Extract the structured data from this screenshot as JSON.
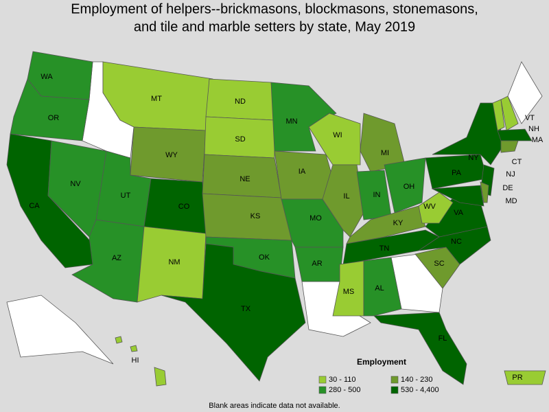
{
  "header": {
    "title": [
      "Employment of helpers--brickmasons, blockmasons, stonemasons,",
      "and tile and marble setters by state, May 2019"
    ]
  },
  "legend": {
    "title": "Employment",
    "classes": [
      {
        "label": "30 - 110",
        "color": "#99cc33"
      },
      {
        "label": "140 - 230",
        "color": "#6f9a2d"
      },
      {
        "label": "280 - 500",
        "color": "#279127"
      },
      {
        "label": "530 - 4,400",
        "color": "#006400"
      }
    ]
  },
  "states": [
    {
      "label": "WA",
      "class": 2
    },
    {
      "label": "OR",
      "class": 2
    },
    {
      "label": "CA",
      "class": 3
    },
    {
      "label": "NV",
      "class": 2
    },
    {
      "label": "MT",
      "class": 0
    },
    {
      "label": "WY",
      "class": 1
    },
    {
      "label": "UT",
      "class": 2
    },
    {
      "label": "CO",
      "class": 3
    },
    {
      "label": "AZ",
      "class": 2
    },
    {
      "label": "NM",
      "class": 0
    },
    {
      "label": "ND",
      "class": 0
    },
    {
      "label": "SD",
      "class": 0
    },
    {
      "label": "NE",
      "class": 1
    },
    {
      "label": "KS",
      "class": 1
    },
    {
      "label": "OK",
      "class": 2
    },
    {
      "label": "TX",
      "class": 3
    },
    {
      "label": "MN",
      "class": 2
    },
    {
      "label": "IA",
      "class": 1
    },
    {
      "label": "MO",
      "class": 2
    },
    {
      "label": "AR",
      "class": 2
    },
    {
      "label": "WI",
      "class": 0
    },
    {
      "label": "IL",
      "class": 1
    },
    {
      "label": "MI",
      "class": 1
    },
    {
      "label": "IN",
      "class": 2
    },
    {
      "label": "OH",
      "class": 2
    },
    {
      "label": "KY",
      "class": 1
    },
    {
      "label": "TN",
      "class": 3
    },
    {
      "label": "MS",
      "class": 0
    },
    {
      "label": "AL",
      "class": 2
    },
    {
      "label": "FL",
      "class": 3
    },
    {
      "label": "SC",
      "class": 1
    },
    {
      "label": "NC",
      "class": 3
    },
    {
      "label": "VA",
      "class": 3
    },
    {
      "label": "WV",
      "class": 0
    },
    {
      "label": "PA",
      "class": 3
    },
    {
      "label": "NY",
      "class": 3
    },
    {
      "label": "NJ",
      "class": 3
    },
    {
      "label": "MD",
      "class": 3
    },
    {
      "label": "DE",
      "class": 1
    },
    {
      "label": "VT",
      "class": 0
    },
    {
      "label": "NH",
      "class": 0
    },
    {
      "label": "MA",
      "class": 3
    },
    {
      "label": "CT",
      "class": 1
    },
    {
      "label": "HI",
      "class": 0
    },
    {
      "label": "PR",
      "class": 0
    }
  ],
  "note": "Blank areas indicate data not available."
}
